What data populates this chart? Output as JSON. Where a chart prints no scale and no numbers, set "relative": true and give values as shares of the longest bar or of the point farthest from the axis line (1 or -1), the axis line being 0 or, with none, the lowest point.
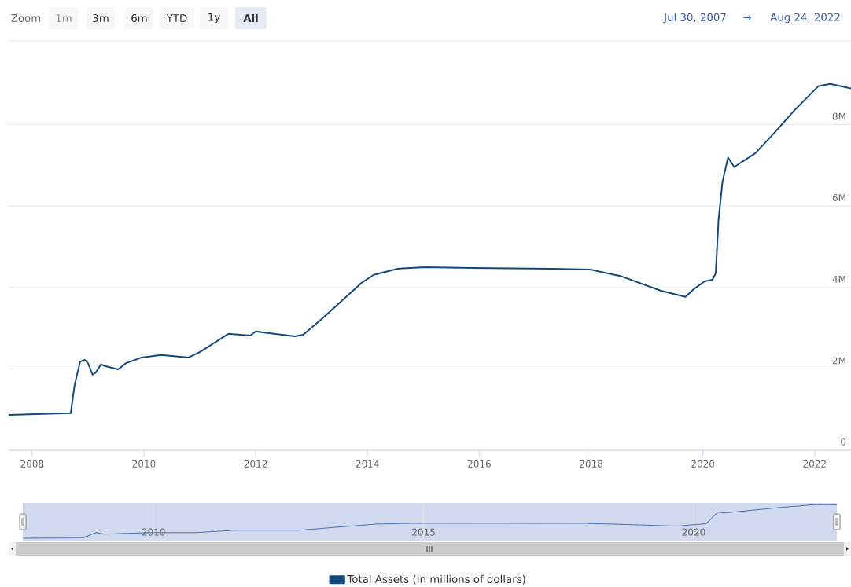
{
  "chart_data": [
    {
      "type": "line",
      "x": [
        2007.58,
        2008.69,
        2008.76,
        2008.86,
        2008.94,
        2009.0,
        2009.08,
        2009.14,
        2009.23,
        2009.3,
        2009.54,
        2009.68,
        2009.96,
        2010.31,
        2010.8,
        2011.01,
        2011.51,
        2011.9,
        2012.0,
        2012.21,
        2012.7,
        2012.85,
        2013.2,
        2013.9,
        2014.11,
        2014.54,
        2015.03,
        2015.87,
        2017.28,
        2017.99,
        2018.55,
        2019.25,
        2019.69,
        2019.82,
        2020.03,
        2020.17,
        2020.23,
        2020.28,
        2020.35,
        2020.45,
        2020.56,
        2020.94,
        2021.3,
        2021.65,
        2022.07,
        2022.28,
        2022.65
      ],
      "series": [
        {
          "name": "Total Assets (In millions of dollars)",
          "color": "#124a80",
          "values": [
            870000,
            910000,
            1600000,
            2180000,
            2220000,
            2140000,
            1860000,
            1910000,
            2110000,
            2070000,
            1990000,
            2140000,
            2280000,
            2340000,
            2280000,
            2420000,
            2860000,
            2820000,
            2920000,
            2880000,
            2800000,
            2840000,
            3250000,
            4120000,
            4310000,
            4460000,
            4500000,
            4480000,
            4460000,
            4440000,
            4270000,
            3920000,
            3770000,
            3940000,
            4150000,
            4190000,
            4350000,
            5660000,
            6590000,
            7190000,
            6960000,
            7300000,
            7830000,
            8370000,
            8950000,
            9000000,
            8890000
          ]
        }
      ],
      "xlim": [
        2007.58,
        2022.65
      ],
      "xticks": [
        2008,
        2010,
        2012,
        2014,
        2016,
        2018,
        2020,
        2022
      ],
      "ylim": [
        0,
        10000000
      ],
      "yticks": [
        0,
        {
          "value": 2000000,
          "label": "2M"
        },
        {
          "value": 4000000,
          "label": "4M"
        },
        {
          "value": 6000000,
          "label": "6M"
        },
        {
          "value": 8000000,
          "label": "8M"
        }
      ],
      "grid": "y",
      "legend": "bottom",
      "annotations": [
        "Zoom",
        "1m",
        "3m",
        "6m",
        "YTD",
        "1y",
        "All",
        "Jul 30, 2007",
        "→",
        "Aug 24, 2022"
      ]
    },
    {
      "type": "line",
      "relative": true,
      "x": [
        2007.58,
        2008.69,
        2008.94,
        2009.08,
        2009.96,
        2010.8,
        2011.51,
        2012.7,
        2014.11,
        2015.03,
        2017.99,
        2019.69,
        2020.23,
        2020.45,
        2020.56,
        2021.65,
        2022.28,
        2022.65
      ],
      "values": [
        0,
        0.01,
        0.17,
        0.12,
        0.17,
        0.17,
        0.24,
        0.24,
        0.42,
        0.45,
        0.44,
        0.36,
        0.43,
        0.78,
        0.75,
        0.92,
        1,
        0.99
      ],
      "color": "#4a72ac",
      "xlim": [
        2007.58,
        2022.65
      ],
      "xticks": [
        2010,
        2015,
        2020
      ],
      "grid": "x"
    }
  ]
}
